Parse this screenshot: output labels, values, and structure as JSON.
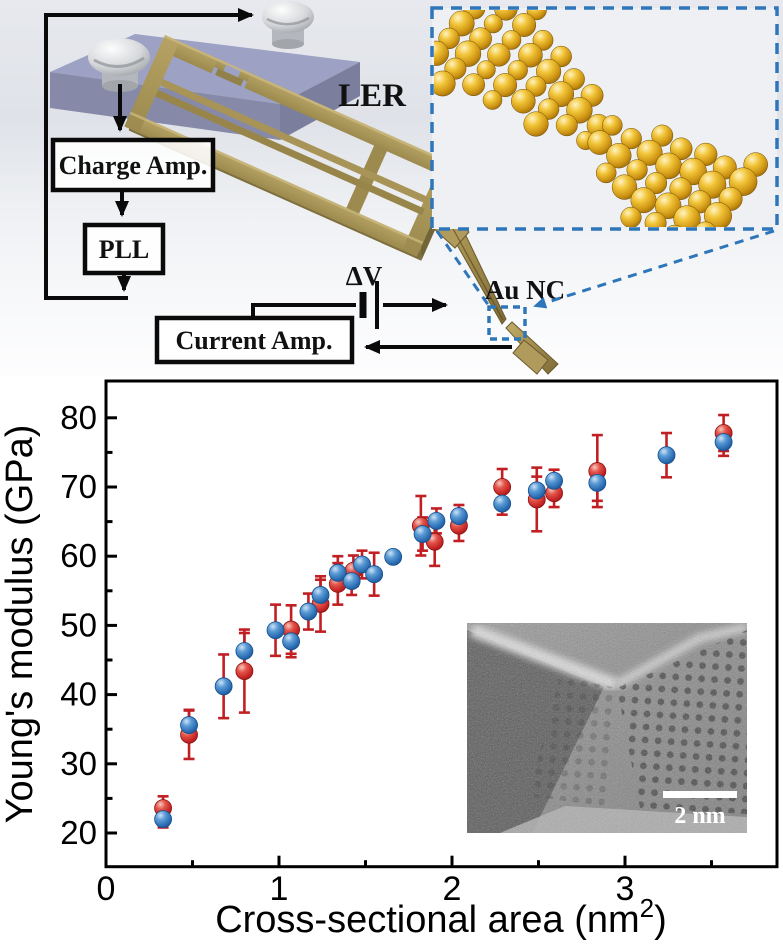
{
  "schematic": {
    "flow_boxes": {
      "charge_amp": "Charge Amp.",
      "pll": "PLL",
      "current_amp": "Current Amp."
    },
    "labels": {
      "resonator": "LER",
      "bias_voltage": "ΔV",
      "sample": "Au NC"
    },
    "colors": {
      "gold": "#a89456",
      "gold_dark": "#7f6f3e",
      "gold_bright": "#c9b478",
      "substrate_top": "#9da1c3",
      "substrate_front": "#868aa8",
      "silver": "#d9dadc",
      "dashed_blue": "#2e76ba",
      "wire_black": "#0a0a0a"
    }
  },
  "chart_data": {
    "type": "scatter",
    "title": "",
    "xlabel": "Cross-sectional area (nm²)",
    "xlabel_parts": {
      "main": "Cross-sectional area (nm",
      "sup": "2",
      "close": ")"
    },
    "ylabel": "Young's modulus (GPa)",
    "xlim": [
      0,
      3.88
    ],
    "ylim": [
      15,
      84
    ],
    "x_major_ticks": [
      0,
      1,
      2,
      3
    ],
    "x_minor_ticks": [
      0.5,
      1.5,
      2.5,
      3.5
    ],
    "y_major_ticks": [
      20,
      30,
      40,
      50,
      60,
      70,
      80
    ],
    "y_minor_ticks": [
      25,
      35,
      45,
      55,
      65,
      75
    ],
    "grid": false,
    "legend": null,
    "error_bar_color": "#c11f23",
    "series": [
      {
        "name": "red",
        "color": "#cf2430",
        "rim": "#8e1414",
        "points": [
          [
            0.33,
            23.6,
            1.7
          ],
          [
            0.48,
            34.2,
            3.5
          ],
          [
            0.8,
            43.4,
            6.0
          ],
          [
            1.07,
            49.4,
            3.5
          ],
          [
            1.24,
            53.1,
            4.0
          ],
          [
            1.34,
            56.0,
            3.0
          ],
          [
            1.43,
            57.9,
            2.2
          ],
          [
            1.82,
            64.4,
            4.3
          ],
          [
            1.9,
            62.1,
            3.5
          ],
          [
            2.04,
            64.4,
            2.2
          ],
          [
            2.29,
            70.0,
            2.6
          ],
          [
            2.49,
            68.2,
            4.6
          ],
          [
            2.59,
            69.1,
            2.0
          ],
          [
            2.84,
            72.3,
            5.2
          ],
          [
            3.57,
            77.8,
            2.6
          ]
        ]
      },
      {
        "name": "blue",
        "color": "#2f6fba",
        "rim": "#174f8c",
        "points": [
          [
            0.33,
            22.0,
            1.2
          ],
          [
            0.48,
            35.6,
            2.2
          ],
          [
            0.68,
            41.2,
            4.6
          ],
          [
            0.8,
            46.3,
            2.6
          ],
          [
            0.98,
            49.3,
            3.7
          ],
          [
            1.07,
            47.7,
            2.3
          ],
          [
            1.17,
            52.0,
            2.6
          ],
          [
            1.24,
            54.4,
            2.2
          ],
          [
            1.34,
            57.6,
            2.4
          ],
          [
            1.42,
            56.4,
            2.0
          ],
          [
            1.48,
            58.8,
            2.0
          ],
          [
            1.55,
            57.4,
            3.1
          ],
          [
            1.66,
            59.9,
            0
          ],
          [
            1.83,
            63.2,
            2.4
          ],
          [
            1.91,
            65.1,
            1.8
          ],
          [
            2.04,
            65.8,
            1.6
          ],
          [
            2.29,
            67.6,
            1.6
          ],
          [
            2.49,
            69.5,
            2.0
          ],
          [
            2.59,
            70.9,
            1.6
          ],
          [
            2.84,
            70.6,
            2.6
          ],
          [
            3.24,
            74.6,
            3.2
          ],
          [
            3.57,
            76.5,
            2.0
          ]
        ]
      }
    ],
    "inset_tem": {
      "scale_bar_label": "2 nm"
    }
  }
}
